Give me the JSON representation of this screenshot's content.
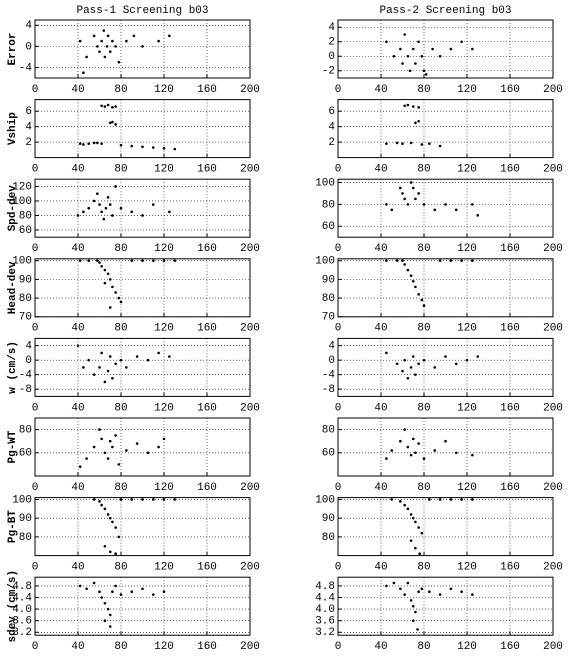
{
  "chart_data": [
    {
      "type": "scatter",
      "title": "Pass-1 Screening b03",
      "ylabel": "Error",
      "color": "#000000",
      "grid": true,
      "xlim": [
        0,
        200
      ],
      "xticks": [
        0,
        40,
        80,
        120,
        160,
        200
      ],
      "ylim": [
        -6,
        5
      ],
      "yticks": [
        -4,
        0,
        4
      ],
      "x": [
        42,
        48,
        55,
        58,
        60,
        62,
        64,
        65,
        67,
        68,
        70,
        72,
        75,
        78,
        85,
        92,
        100,
        115,
        125,
        45
      ],
      "y": [
        1,
        -2,
        2,
        0,
        -1,
        1,
        3,
        -2,
        0,
        2,
        -1,
        1,
        0,
        -3,
        1,
        2,
        0,
        1,
        2,
        -5
      ]
    },
    {
      "type": "scatter",
      "title": "Pass-2 Screening b03",
      "color": "#000000",
      "grid": true,
      "xlim": [
        0,
        200
      ],
      "xticks": [
        0,
        40,
        80,
        120,
        160,
        200
      ],
      "ylim": [
        -3,
        5
      ],
      "yticks": [
        -2,
        0,
        2,
        4
      ],
      "x": [
        45,
        52,
        58,
        60,
        62,
        65,
        67,
        70,
        72,
        75,
        78,
        82,
        88,
        95,
        105,
        115,
        125,
        80
      ],
      "y": [
        2,
        0,
        1,
        -1,
        3,
        0,
        -2,
        1,
        -1,
        2,
        0,
        -2.5,
        1,
        0,
        1,
        2,
        1,
        -2
      ]
    },
    {
      "type": "scatter",
      "ylabel": "Vship",
      "color": "#000000",
      "grid": true,
      "xlim": [
        0,
        200
      ],
      "xticks": [
        0,
        40,
        80,
        120,
        160,
        200
      ],
      "ylim": [
        0,
        7.5
      ],
      "yticks": [
        2,
        4,
        6
      ],
      "x": [
        42,
        50,
        58,
        62,
        65,
        68,
        72,
        75,
        70,
        72,
        75,
        45,
        55,
        62,
        80,
        90,
        100,
        110,
        120,
        130
      ],
      "y": [
        1.8,
        1.8,
        1.9,
        6.7,
        6.6,
        6.8,
        6.5,
        6.6,
        4.5,
        4.6,
        4.3,
        1.7,
        1.9,
        1.8,
        1.6,
        1.5,
        1.4,
        1.3,
        1.2,
        1.1
      ]
    },
    {
      "type": "scatter",
      "color": "#000000",
      "grid": true,
      "xlim": [
        0,
        200
      ],
      "xticks": [
        0,
        40,
        80,
        120,
        160,
        200
      ],
      "ylim": [
        0,
        7.5
      ],
      "yticks": [
        2,
        4,
        6
      ],
      "x": [
        45,
        55,
        62,
        65,
        70,
        75,
        72,
        75,
        60,
        68,
        78,
        85,
        95
      ],
      "y": [
        1.8,
        1.9,
        6.7,
        6.8,
        6.6,
        6.5,
        4.5,
        4.7,
        1.8,
        1.9,
        1.7,
        1.8,
        1.5
      ]
    },
    {
      "type": "scatter",
      "ylabel": "Spd-dev",
      "color": "#000000",
      "grid": true,
      "xlim": [
        0,
        200
      ],
      "xticks": [
        0,
        40,
        80,
        120,
        160,
        200
      ],
      "ylim": [
        50,
        130
      ],
      "yticks": [
        60,
        80,
        100,
        120
      ],
      "x": [
        40,
        45,
        50,
        55,
        58,
        60,
        62,
        64,
        66,
        68,
        70,
        72,
        75,
        80,
        90,
        100,
        110,
        125
      ],
      "y": [
        80,
        85,
        90,
        100,
        110,
        95,
        85,
        75,
        90,
        105,
        95,
        80,
        120,
        90,
        85,
        80,
        95,
        85
      ]
    },
    {
      "type": "scatter",
      "color": "#000000",
      "grid": true,
      "xlim": [
        0,
        200
      ],
      "xticks": [
        0,
        40,
        80,
        120,
        160,
        200
      ],
      "ylim": [
        50,
        103
      ],
      "yticks": [
        60,
        80,
        100
      ],
      "x": [
        45,
        50,
        58,
        60,
        62,
        65,
        68,
        70,
        72,
        75,
        80,
        90,
        100,
        110,
        125,
        130
      ],
      "y": [
        80,
        75,
        95,
        90,
        85,
        80,
        100,
        95,
        85,
        90,
        80,
        75,
        80,
        75,
        80,
        70
      ]
    },
    {
      "type": "scatter",
      "ylabel": "Head-dev",
      "color": "#000000",
      "grid": true,
      "xlim": [
        0,
        200
      ],
      "xticks": [
        0,
        40,
        80,
        120,
        160,
        200
      ],
      "ylim": [
        70,
        101
      ],
      "yticks": [
        70,
        80,
        90,
        100
      ],
      "x": [
        42,
        50,
        58,
        60,
        62,
        65,
        68,
        70,
        72,
        75,
        78,
        80,
        90,
        100,
        110,
        120,
        130,
        65,
        70
      ],
      "y": [
        100,
        100,
        100,
        99,
        97,
        95,
        93,
        90,
        86,
        83,
        80,
        78,
        100,
        100,
        100,
        100,
        100,
        88,
        75
      ]
    },
    {
      "type": "scatter",
      "color": "#000000",
      "grid": true,
      "xlim": [
        0,
        200
      ],
      "xticks": [
        0,
        40,
        80,
        120,
        160,
        200
      ],
      "ylim": [
        70,
        101
      ],
      "yticks": [
        70,
        80,
        90,
        100
      ],
      "x": [
        45,
        55,
        60,
        62,
        65,
        68,
        70,
        72,
        75,
        78,
        80,
        95,
        105,
        115,
        125
      ],
      "y": [
        100,
        100,
        100,
        98,
        95,
        92,
        89,
        86,
        82,
        79,
        76,
        100,
        100,
        100,
        100
      ]
    },
    {
      "type": "scatter",
      "ylabel": "w (cm/s)",
      "color": "#000000",
      "grid": true,
      "xlim": [
        0,
        200
      ],
      "xticks": [
        0,
        40,
        80,
        120,
        160,
        200
      ],
      "ylim": [
        -10,
        6
      ],
      "yticks": [
        -8,
        -4,
        0,
        4
      ],
      "x": [
        40,
        45,
        50,
        55,
        60,
        62,
        65,
        68,
        70,
        72,
        75,
        80,
        85,
        95,
        105,
        115,
        125
      ],
      "y": [
        4,
        -2,
        0,
        -4,
        -2,
        2,
        -6,
        -3,
        1,
        -5,
        -1,
        0,
        -2,
        1,
        0,
        2,
        1
      ]
    },
    {
      "type": "scatter",
      "color": "#000000",
      "grid": true,
      "xlim": [
        0,
        200
      ],
      "xticks": [
        0,
        40,
        80,
        120,
        160,
        200
      ],
      "ylim": [
        -10,
        6
      ],
      "yticks": [
        -8,
        -4,
        0,
        4
      ],
      "x": [
        45,
        55,
        60,
        62,
        65,
        68,
        70,
        72,
        75,
        80,
        90,
        100,
        110,
        120,
        130
      ],
      "y": [
        2,
        -1,
        -3,
        0,
        -5,
        -2,
        1,
        -4,
        -1,
        0,
        -2,
        1,
        -1,
        0,
        1
      ]
    },
    {
      "type": "scatter",
      "ylabel": "Pg-WT",
      "color": "#000000",
      "grid": true,
      "xlim": [
        0,
        200
      ],
      "xticks": [
        0,
        40,
        80,
        120,
        160,
        200
      ],
      "ylim": [
        40,
        90
      ],
      "yticks": [
        60,
        80
      ],
      "x": [
        42,
        48,
        55,
        60,
        62,
        65,
        68,
        70,
        72,
        75,
        78,
        85,
        95,
        105,
        115,
        120
      ],
      "y": [
        48,
        55,
        65,
        80,
        72,
        60,
        55,
        70,
        65,
        75,
        50,
        62,
        68,
        60,
        65,
        72
      ]
    },
    {
      "type": "scatter",
      "color": "#000000",
      "grid": true,
      "xlim": [
        0,
        200
      ],
      "xticks": [
        0,
        40,
        80,
        120,
        160,
        200
      ],
      "ylim": [
        40,
        90
      ],
      "yticks": [
        60,
        80
      ],
      "x": [
        45,
        50,
        58,
        62,
        65,
        68,
        70,
        72,
        75,
        80,
        90,
        100,
        110,
        125
      ],
      "y": [
        55,
        62,
        70,
        80,
        65,
        58,
        72,
        60,
        68,
        55,
        62,
        70,
        60,
        58
      ]
    },
    {
      "type": "scatter",
      "ylabel": "Pg-BT",
      "color": "#000000",
      "grid": true,
      "xlim": [
        0,
        200
      ],
      "xticks": [
        0,
        40,
        80,
        120,
        160,
        200
      ],
      "ylim": [
        70,
        101
      ],
      "yticks": [
        80,
        90,
        100
      ],
      "x": [
        55,
        60,
        62,
        65,
        68,
        70,
        72,
        75,
        78,
        80,
        90,
        100,
        110,
        120,
        130,
        65,
        70,
        75
      ],
      "y": [
        100,
        99,
        97,
        95,
        92,
        90,
        88,
        85,
        80,
        100,
        100,
        100,
        100,
        100,
        100,
        75,
        72,
        71
      ]
    },
    {
      "type": "scatter",
      "color": "#000000",
      "grid": true,
      "xlim": [
        0,
        200
      ],
      "xticks": [
        0,
        40,
        80,
        120,
        160,
        200
      ],
      "ylim": [
        70,
        101
      ],
      "yticks": [
        80,
        90,
        100
      ],
      "x": [
        50,
        58,
        62,
        65,
        68,
        70,
        72,
        75,
        78,
        85,
        95,
        105,
        115,
        125,
        68,
        72,
        76
      ],
      "y": [
        100,
        99,
        97,
        95,
        92,
        90,
        88,
        85,
        82,
        100,
        100,
        100,
        100,
        100,
        78,
        74,
        71
      ]
    },
    {
      "type": "scatter",
      "ylabel": "sdev (cm/s)",
      "color": "#000000",
      "grid": true,
      "xlim": [
        0,
        200
      ],
      "xticks": [
        0,
        40,
        80,
        120,
        160,
        200
      ],
      "ylim": [
        3.1,
        5.1
      ],
      "yticks": [
        3.2,
        3.6,
        {
          "value": 4,
          "label": "4.0"
        },
        4.4,
        4.8
      ],
      "x": [
        42,
        48,
        55,
        60,
        62,
        65,
        68,
        70,
        72,
        75,
        80,
        90,
        100,
        110,
        120,
        65,
        70
      ],
      "y": [
        4.8,
        4.7,
        4.9,
        4.6,
        4.4,
        4.2,
        4.0,
        3.8,
        4.6,
        4.8,
        4.5,
        4.6,
        4.7,
        4.5,
        4.6,
        3.6,
        3.4
      ]
    },
    {
      "type": "scatter",
      "color": "#000000",
      "grid": true,
      "xlim": [
        0,
        200
      ],
      "xticks": [
        0,
        40,
        80,
        120,
        160,
        200
      ],
      "ylim": [
        3.1,
        5.1
      ],
      "yticks": [
        3.2,
        3.6,
        {
          "value": 4,
          "label": "4.0"
        },
        4.4,
        4.8
      ],
      "x": [
        45,
        52,
        58,
        62,
        65,
        68,
        70,
        72,
        75,
        78,
        85,
        95,
        105,
        115,
        125,
        70,
        74
      ],
      "y": [
        4.8,
        4.9,
        4.7,
        4.5,
        4.9,
        4.3,
        4.1,
        3.9,
        4.6,
        4.7,
        4.6,
        4.5,
        4.7,
        4.6,
        4.5,
        3.6,
        3.3
      ]
    }
  ]
}
